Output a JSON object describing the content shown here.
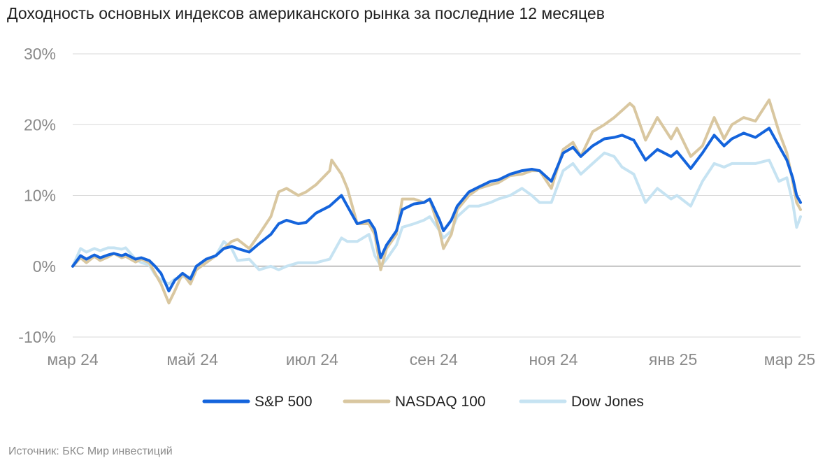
{
  "title": "Доходность основных индексов американского рынка за последние 12 месяцев",
  "source": "Источник: БКС Мир инвестиций",
  "colors": {
    "sp500": "#1464dc",
    "nasdaq": "#d9c7a0",
    "dow": "#c6e3f2",
    "grid": "#d9d9d9",
    "axis": "#bfbfbf",
    "ticks": "#8a8a8a"
  },
  "chart_data": {
    "type": "line",
    "grid": true,
    "legend_position": "bottom",
    "ylim": [
      -10,
      30
    ],
    "yticks": [
      -10,
      0,
      10,
      20,
      30
    ],
    "ytick_labels": [
      "-10%",
      "0%",
      "10%",
      "20%",
      "30%"
    ],
    "xlim": [
      "2024-03-01",
      "2025-03-07"
    ],
    "xticks": [
      "2024-03-01",
      "2024-05-01",
      "2024-07-01",
      "2024-09-01",
      "2024-11-01",
      "2025-01-01",
      "2025-03-01"
    ],
    "xtick_labels": [
      "мар 24",
      "май 24",
      "июл 24",
      "сен 24",
      "ноя 24",
      "янв 25",
      "мар 25"
    ],
    "series": [
      {
        "name": "S&P 500",
        "color_key": "sp500",
        "points": [
          [
            "2024-03-01",
            0
          ],
          [
            "2024-03-05",
            1.5
          ],
          [
            "2024-03-08",
            1
          ],
          [
            "2024-03-12",
            1.6
          ],
          [
            "2024-03-15",
            1.2
          ],
          [
            "2024-03-19",
            1.6
          ],
          [
            "2024-03-22",
            1.8
          ],
          [
            "2024-03-26",
            1.5
          ],
          [
            "2024-03-28",
            1.7
          ],
          [
            "2024-04-02",
            1
          ],
          [
            "2024-04-05",
            1.2
          ],
          [
            "2024-04-09",
            0.8
          ],
          [
            "2024-04-12",
            0
          ],
          [
            "2024-04-15",
            -1
          ],
          [
            "2024-04-19",
            -3.5
          ],
          [
            "2024-04-22",
            -2
          ],
          [
            "2024-04-26",
            -1
          ],
          [
            "2024-04-30",
            -1.8
          ],
          [
            "2024-05-03",
            0
          ],
          [
            "2024-05-08",
            1
          ],
          [
            "2024-05-13",
            1.5
          ],
          [
            "2024-05-17",
            2.5
          ],
          [
            "2024-05-21",
            2.8
          ],
          [
            "2024-05-24",
            2.5
          ],
          [
            "2024-05-30",
            2
          ],
          [
            "2024-06-04",
            3.2
          ],
          [
            "2024-06-10",
            4.5
          ],
          [
            "2024-06-14",
            6
          ],
          [
            "2024-06-18",
            6.5
          ],
          [
            "2024-06-24",
            6
          ],
          [
            "2024-06-28",
            6.2
          ],
          [
            "2024-07-03",
            7.5
          ],
          [
            "2024-07-10",
            8.5
          ],
          [
            "2024-07-16",
            10
          ],
          [
            "2024-07-19",
            8.5
          ],
          [
            "2024-07-24",
            6
          ],
          [
            "2024-07-30",
            6.5
          ],
          [
            "2024-08-02",
            5.2
          ],
          [
            "2024-08-05",
            1.2
          ],
          [
            "2024-08-08",
            3
          ],
          [
            "2024-08-13",
            5
          ],
          [
            "2024-08-16",
            8
          ],
          [
            "2024-08-22",
            8.8
          ],
          [
            "2024-08-27",
            9
          ],
          [
            "2024-08-30",
            9.5
          ],
          [
            "2024-09-04",
            6.5
          ],
          [
            "2024-09-06",
            5
          ],
          [
            "2024-09-10",
            6.5
          ],
          [
            "2024-09-13",
            8.5
          ],
          [
            "2024-09-19",
            10.5
          ],
          [
            "2024-09-24",
            11.2
          ],
          [
            "2024-09-30",
            12
          ],
          [
            "2024-10-04",
            12.2
          ],
          [
            "2024-10-10",
            13
          ],
          [
            "2024-10-16",
            13.5
          ],
          [
            "2024-10-21",
            13.7
          ],
          [
            "2024-10-25",
            13.5
          ],
          [
            "2024-10-31",
            12
          ],
          [
            "2024-11-06",
            16
          ],
          [
            "2024-11-11",
            16.8
          ],
          [
            "2024-11-15",
            15.5
          ],
          [
            "2024-11-21",
            17
          ],
          [
            "2024-11-27",
            18
          ],
          [
            "2024-12-02",
            18.2
          ],
          [
            "2024-12-06",
            18.5
          ],
          [
            "2024-12-12",
            17.8
          ],
          [
            "2024-12-18",
            15
          ],
          [
            "2024-12-24",
            16.5
          ],
          [
            "2024-12-31",
            15.5
          ],
          [
            "2025-01-03",
            16.2
          ],
          [
            "2025-01-10",
            13.8
          ],
          [
            "2025-01-16",
            16
          ],
          [
            "2025-01-22",
            18.5
          ],
          [
            "2025-01-27",
            17
          ],
          [
            "2025-01-31",
            18
          ],
          [
            "2025-02-06",
            18.8
          ],
          [
            "2025-02-12",
            18.2
          ],
          [
            "2025-02-19",
            19.5
          ],
          [
            "2025-02-24",
            17
          ],
          [
            "2025-02-28",
            15
          ],
          [
            "2025-03-03",
            12.5
          ],
          [
            "2025-03-05",
            10
          ],
          [
            "2025-03-07",
            9
          ]
        ]
      },
      {
        "name": "NASDAQ 100",
        "color_key": "nasdaq",
        "points": [
          [
            "2024-03-01",
            0
          ],
          [
            "2024-03-05",
            1.2
          ],
          [
            "2024-03-08",
            0.5
          ],
          [
            "2024-03-12",
            1.4
          ],
          [
            "2024-03-15",
            0.8
          ],
          [
            "2024-03-19",
            1.3
          ],
          [
            "2024-03-22",
            1.8
          ],
          [
            "2024-03-26",
            1.2
          ],
          [
            "2024-03-28",
            1.4
          ],
          [
            "2024-04-02",
            0.6
          ],
          [
            "2024-04-05",
            1
          ],
          [
            "2024-04-09",
            0.5
          ],
          [
            "2024-04-12",
            -1
          ],
          [
            "2024-04-15",
            -2.5
          ],
          [
            "2024-04-19",
            -5.2
          ],
          [
            "2024-04-22",
            -3.5
          ],
          [
            "2024-04-26",
            -1
          ],
          [
            "2024-04-30",
            -2.5
          ],
          [
            "2024-05-03",
            -0.5
          ],
          [
            "2024-05-08",
            0.5
          ],
          [
            "2024-05-13",
            1.5
          ],
          [
            "2024-05-17",
            2.5
          ],
          [
            "2024-05-21",
            3.5
          ],
          [
            "2024-05-24",
            3.8
          ],
          [
            "2024-05-30",
            2.5
          ],
          [
            "2024-06-04",
            4.5
          ],
          [
            "2024-06-10",
            7
          ],
          [
            "2024-06-14",
            10.5
          ],
          [
            "2024-06-18",
            11
          ],
          [
            "2024-06-24",
            10
          ],
          [
            "2024-06-28",
            10.5
          ],
          [
            "2024-07-03",
            11.5
          ],
          [
            "2024-07-10",
            13.5
          ],
          [
            "2024-07-11",
            15
          ],
          [
            "2024-07-16",
            13
          ],
          [
            "2024-07-19",
            11
          ],
          [
            "2024-07-24",
            6
          ],
          [
            "2024-07-30",
            6
          ],
          [
            "2024-08-02",
            4.5
          ],
          [
            "2024-08-05",
            -0.5
          ],
          [
            "2024-08-08",
            2.5
          ],
          [
            "2024-08-13",
            4.5
          ],
          [
            "2024-08-16",
            9.5
          ],
          [
            "2024-08-22",
            9.5
          ],
          [
            "2024-08-27",
            9
          ],
          [
            "2024-08-30",
            9.5
          ],
          [
            "2024-09-04",
            5
          ],
          [
            "2024-09-06",
            2.5
          ],
          [
            "2024-09-10",
            4.5
          ],
          [
            "2024-09-13",
            8
          ],
          [
            "2024-09-19",
            10
          ],
          [
            "2024-09-24",
            11
          ],
          [
            "2024-09-30",
            11.5
          ],
          [
            "2024-10-04",
            11.8
          ],
          [
            "2024-10-10",
            12.8
          ],
          [
            "2024-10-16",
            13
          ],
          [
            "2024-10-21",
            13.5
          ],
          [
            "2024-10-25",
            13.5
          ],
          [
            "2024-10-31",
            11
          ],
          [
            "2024-11-06",
            16.5
          ],
          [
            "2024-11-11",
            17.5
          ],
          [
            "2024-11-15",
            15.5
          ],
          [
            "2024-11-21",
            19
          ],
          [
            "2024-11-27",
            20
          ],
          [
            "2024-12-02",
            21
          ],
          [
            "2024-12-06",
            22
          ],
          [
            "2024-12-10",
            23
          ],
          [
            "2024-12-12",
            22.5
          ],
          [
            "2024-12-18",
            17.8
          ],
          [
            "2024-12-24",
            21
          ],
          [
            "2024-12-31",
            18
          ],
          [
            "2025-01-03",
            19.5
          ],
          [
            "2025-01-10",
            15.5
          ],
          [
            "2025-01-16",
            17
          ],
          [
            "2025-01-22",
            21
          ],
          [
            "2025-01-27",
            18
          ],
          [
            "2025-01-31",
            20
          ],
          [
            "2025-02-06",
            21
          ],
          [
            "2025-02-12",
            20.5
          ],
          [
            "2025-02-19",
            23.5
          ],
          [
            "2025-02-24",
            19
          ],
          [
            "2025-02-28",
            16
          ],
          [
            "2025-03-03",
            12
          ],
          [
            "2025-03-05",
            9
          ],
          [
            "2025-03-07",
            8
          ]
        ]
      },
      {
        "name": "Dow Jones",
        "color_key": "dow",
        "points": [
          [
            "2024-03-01",
            0
          ],
          [
            "2024-03-05",
            2.5
          ],
          [
            "2024-03-08",
            2
          ],
          [
            "2024-03-12",
            2.5
          ],
          [
            "2024-03-15",
            2.2
          ],
          [
            "2024-03-19",
            2.6
          ],
          [
            "2024-03-22",
            2.6
          ],
          [
            "2024-03-26",
            2.4
          ],
          [
            "2024-03-28",
            2.6
          ],
          [
            "2024-04-02",
            1
          ],
          [
            "2024-04-05",
            0.5
          ],
          [
            "2024-04-09",
            0.2
          ],
          [
            "2024-04-12",
            -1.2
          ],
          [
            "2024-04-15",
            -2
          ],
          [
            "2024-04-19",
            -2.5
          ],
          [
            "2024-04-22",
            -1.8
          ],
          [
            "2024-04-26",
            -1.5
          ],
          [
            "2024-04-30",
            -1.6
          ],
          [
            "2024-05-03",
            0
          ],
          [
            "2024-05-08",
            0.8
          ],
          [
            "2024-05-13",
            1.5
          ],
          [
            "2024-05-17",
            3.5
          ],
          [
            "2024-05-21",
            2.5
          ],
          [
            "2024-05-24",
            0.8
          ],
          [
            "2024-05-30",
            1
          ],
          [
            "2024-06-04",
            -0.5
          ],
          [
            "2024-06-10",
            0
          ],
          [
            "2024-06-14",
            -0.5
          ],
          [
            "2024-06-18",
            0
          ],
          [
            "2024-06-24",
            0.5
          ],
          [
            "2024-06-28",
            0.5
          ],
          [
            "2024-07-03",
            0.5
          ],
          [
            "2024-07-10",
            1
          ],
          [
            "2024-07-16",
            4
          ],
          [
            "2024-07-19",
            3.5
          ],
          [
            "2024-07-24",
            3.5
          ],
          [
            "2024-07-30",
            4.5
          ],
          [
            "2024-08-02",
            1.5
          ],
          [
            "2024-08-05",
            0
          ],
          [
            "2024-08-08",
            1
          ],
          [
            "2024-08-13",
            3
          ],
          [
            "2024-08-16",
            5.5
          ],
          [
            "2024-08-22",
            6
          ],
          [
            "2024-08-27",
            6.5
          ],
          [
            "2024-08-30",
            7
          ],
          [
            "2024-09-04",
            5
          ],
          [
            "2024-09-06",
            4
          ],
          [
            "2024-09-10",
            5
          ],
          [
            "2024-09-13",
            7
          ],
          [
            "2024-09-19",
            8.5
          ],
          [
            "2024-09-24",
            8.5
          ],
          [
            "2024-09-30",
            9
          ],
          [
            "2024-10-04",
            9.5
          ],
          [
            "2024-10-10",
            10
          ],
          [
            "2024-10-16",
            11
          ],
          [
            "2024-10-21",
            10
          ],
          [
            "2024-10-25",
            9
          ],
          [
            "2024-10-31",
            9
          ],
          [
            "2024-11-06",
            13.5
          ],
          [
            "2024-11-11",
            14.5
          ],
          [
            "2024-11-15",
            13
          ],
          [
            "2024-11-21",
            14.5
          ],
          [
            "2024-11-27",
            16
          ],
          [
            "2024-12-02",
            15.5
          ],
          [
            "2024-12-06",
            14
          ],
          [
            "2024-12-12",
            13
          ],
          [
            "2024-12-18",
            9
          ],
          [
            "2024-12-24",
            11
          ],
          [
            "2024-12-31",
            9.5
          ],
          [
            "2025-01-03",
            10
          ],
          [
            "2025-01-10",
            8.5
          ],
          [
            "2025-01-16",
            12
          ],
          [
            "2025-01-22",
            14.5
          ],
          [
            "2025-01-27",
            14
          ],
          [
            "2025-01-31",
            14.5
          ],
          [
            "2025-02-06",
            14.5
          ],
          [
            "2025-02-12",
            14.5
          ],
          [
            "2025-02-19",
            15
          ],
          [
            "2025-02-24",
            12
          ],
          [
            "2025-02-28",
            12.5
          ],
          [
            "2025-03-03",
            9
          ],
          [
            "2025-03-05",
            5.5
          ],
          [
            "2025-03-07",
            7
          ]
        ]
      }
    ]
  }
}
